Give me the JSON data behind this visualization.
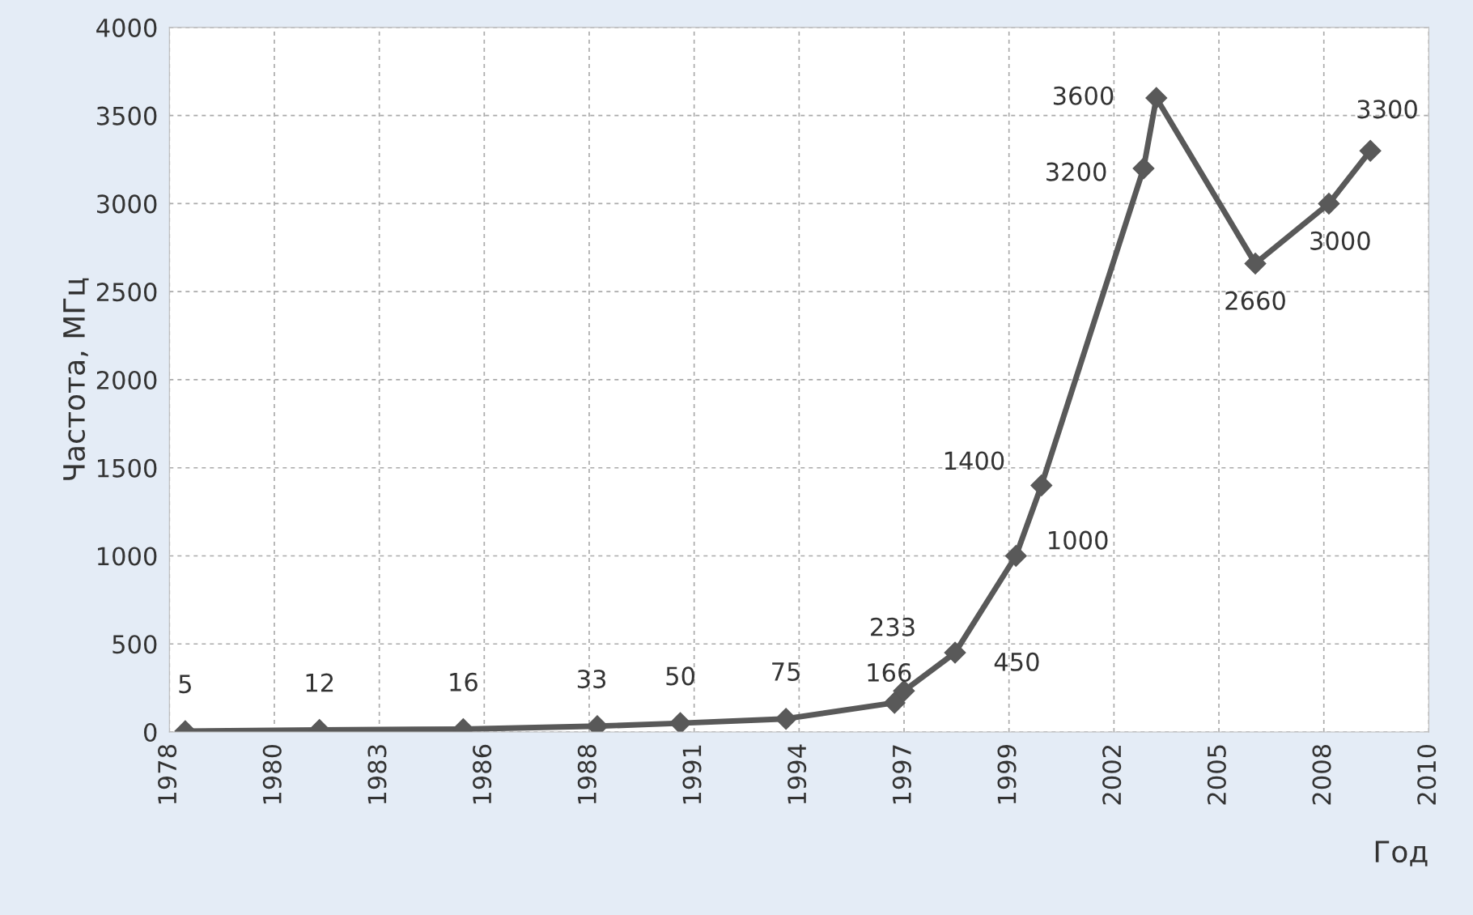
{
  "chart_data": {
    "type": "line",
    "xlabel": "Год",
    "ylabel": "Частота, МГц",
    "x": [
      "1978-06",
      "1981-12",
      "1985-09",
      "1989-03",
      "1991-05",
      "1994-02",
      "1996-12",
      "1997-03",
      "1998-07",
      "2000-02",
      "2000-10",
      "2003-06",
      "2003-10",
      "2006-05",
      "2008-04",
      "2009-05"
    ],
    "values": [
      5,
      12,
      16,
      33,
      50,
      75,
      166,
      233,
      450,
      1000,
      1400,
      3200,
      3600,
      2660,
      3000,
      3300
    ],
    "color": "#595959",
    "marker": "diamond",
    "line_style": "solid",
    "data_labels": true,
    "grid": true,
    "xlim": [
      "1978-01-01",
      "2010-11-09"
    ],
    "xticks": [
      {
        "value": "1978-01-01",
        "label": "1978"
      },
      {
        "value": "1980-09-27",
        "label": "1980"
      },
      {
        "value": "1983-06-24",
        "label": "1983"
      },
      {
        "value": "1986-03-20",
        "label": "1986"
      },
      {
        "value": "1988-12-14",
        "label": "1988"
      },
      {
        "value": "1991-09-10",
        "label": "1991"
      },
      {
        "value": "1994-06-06",
        "label": "1994"
      },
      {
        "value": "1997-03-02",
        "label": "1997"
      },
      {
        "value": "1999-11-27",
        "label": "1999"
      },
      {
        "value": "2002-08-23",
        "label": "2002"
      },
      {
        "value": "2005-05-19",
        "label": "2005"
      },
      {
        "value": "2008-02-13",
        "label": "2008"
      },
      {
        "value": "2010-11-09",
        "label": "2010"
      }
    ],
    "ylim": [
      0,
      4000
    ],
    "yticks": [
      0,
      500,
      1000,
      1500,
      2000,
      2500,
      3000,
      3500,
      4000
    ]
  }
}
